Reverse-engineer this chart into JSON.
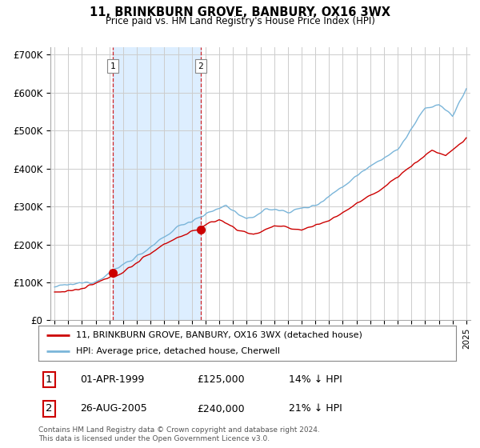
{
  "title": "11, BRINKBURN GROVE, BANBURY, OX16 3WX",
  "subtitle": "Price paid vs. HM Land Registry's House Price Index (HPI)",
  "legend_line1": "11, BRINKBURN GROVE, BANBURY, OX16 3WX (detached house)",
  "legend_line2": "HPI: Average price, detached house, Cherwell",
  "sale1_date": "01-APR-1999",
  "sale1_price": "£125,000",
  "sale1_hpi": "14% ↓ HPI",
  "sale2_date": "26-AUG-2005",
  "sale2_price": "£240,000",
  "sale2_hpi": "21% ↓ HPI",
  "footnote": "Contains HM Land Registry data © Crown copyright and database right 2024.\nThis data is licensed under the Open Government Licence v3.0.",
  "hpi_color": "#7ab5d9",
  "price_color": "#cc0000",
  "marker_color": "#cc0000",
  "vline_color": "#cc0000",
  "shade_color": "#ddeeff",
  "background_color": "#ffffff",
  "grid_color": "#cccccc",
  "ylim": [
    0,
    720000
  ],
  "yticks": [
    0,
    100000,
    200000,
    300000,
    400000,
    500000,
    600000,
    700000
  ],
  "ytick_labels": [
    "£0",
    "£100K",
    "£200K",
    "£300K",
    "£400K",
    "£500K",
    "£600K",
    "£700K"
  ],
  "sale1_x": 1999.25,
  "sale1_y": 125000,
  "sale2_x": 2005.65,
  "sale2_y": 240000,
  "xmin": 1995,
  "xmax": 2025
}
